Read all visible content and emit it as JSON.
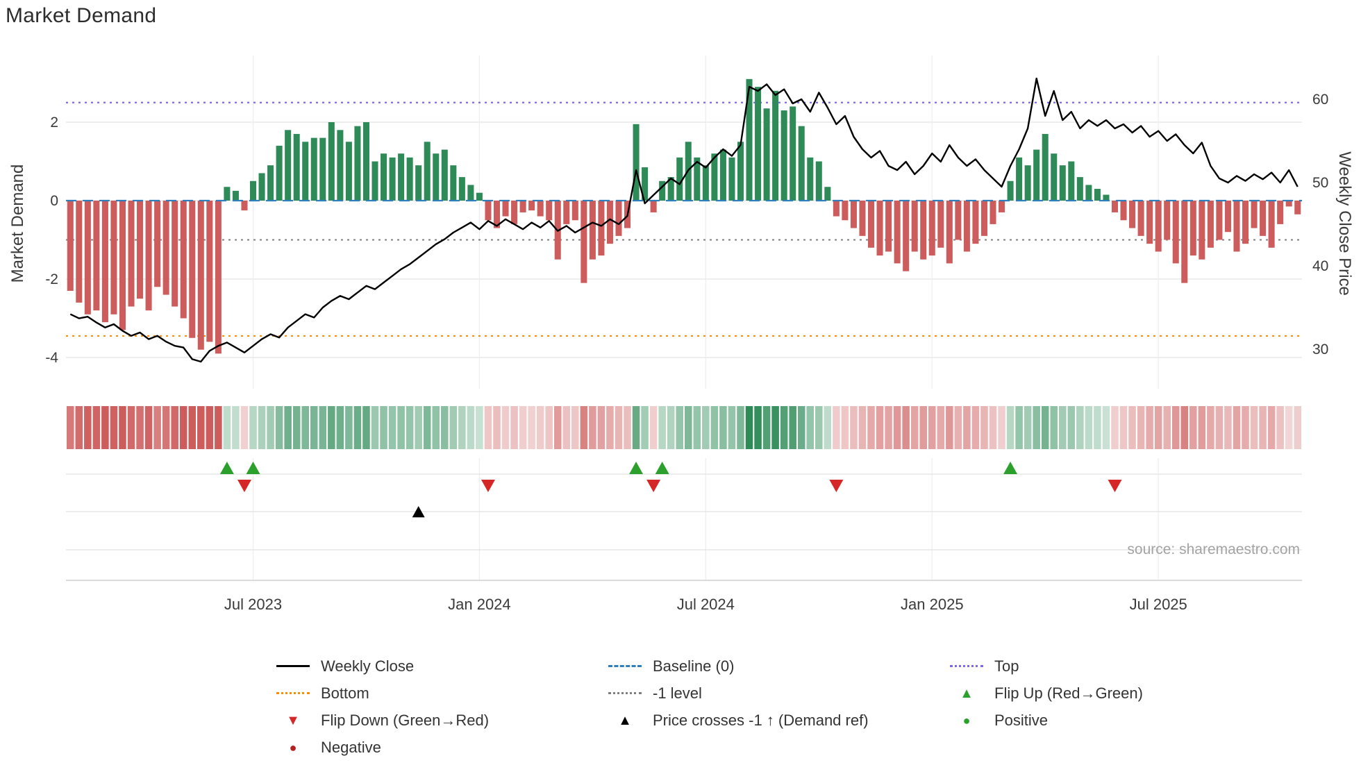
{
  "title": "Market Demand",
  "left_axis": {
    "label": "Market Demand",
    "ticks": [
      2,
      0,
      -2,
      -4
    ]
  },
  "right_axis": {
    "label": "Weekly Close Price",
    "ticks": [
      60,
      50,
      40,
      30
    ]
  },
  "x_axis": {
    "tick_labels": [
      "Jul 2023",
      "Jan 2024",
      "Jul 2024",
      "Jan 2025",
      "Jul 2025"
    ],
    "tick_indices": [
      21,
      47,
      73,
      99,
      125
    ]
  },
  "source": "source: sharemaestro.com",
  "colors": {
    "bar_positive": "#2e8b57",
    "bar_negative": "#cd5c5c",
    "price_line": "#000000",
    "baseline": "#2e7ebc",
    "top": "#7b68ee",
    "bottom": "#ff8c00",
    "minus_one": "#7f7f7f",
    "flip_up": "#2ca02c",
    "flip_down": "#d62728",
    "price_cross": "#000000",
    "grid": "#e4e4e4"
  },
  "legend": {
    "items": [
      {
        "label": "Weekly Close",
        "swatch": "line",
        "dash": "solid",
        "color": "#000000"
      },
      {
        "label": "Baseline (0)",
        "swatch": "line",
        "dash": "dashed",
        "color": "#2e7ebc"
      },
      {
        "label": "Top",
        "swatch": "line",
        "dash": "dotted",
        "color": "#7b68ee"
      },
      {
        "label": "Bottom",
        "swatch": "line",
        "dash": "dotted",
        "color": "#ff8c00"
      },
      {
        "label": "-1 level",
        "swatch": "line",
        "dash": "dotted",
        "color": "#7f7f7f"
      },
      {
        "label": "Flip Up (Red→Green)",
        "swatch": "glyph",
        "glyph": "▲",
        "color": "#2ca02c"
      },
      {
        "label": "Flip Down (Green→Red)",
        "swatch": "glyph",
        "glyph": "▼",
        "color": "#d62728"
      },
      {
        "label": "Price crosses -1 ↑ (Demand ref)",
        "swatch": "glyph",
        "glyph": "▲",
        "color": "#000000"
      },
      {
        "label": "Positive",
        "swatch": "glyph",
        "glyph": "●",
        "color": "#2ca02c"
      },
      {
        "label": "Negative",
        "swatch": "glyph",
        "glyph": "●",
        "color": "#b22222"
      }
    ]
  },
  "chart_data": {
    "type": "combo",
    "x_unit": "week",
    "x_tick_labels": [
      "Jul 2023",
      "Jan 2024",
      "Jul 2024",
      "Jan 2025",
      "Jul 2025"
    ],
    "x_tick_indices": [
      21,
      47,
      73,
      99,
      125
    ],
    "left_ylim": [
      -4.6,
      3.7
    ],
    "right_ylim": [
      28,
      63
    ],
    "reference_lines": {
      "baseline": 0,
      "top": 2.5,
      "minus_one": -1,
      "bottom": -3.45
    },
    "heatmap_from": "Market Demand",
    "series": [
      {
        "name": "Market Demand",
        "type": "bar",
        "axis": "left",
        "values": [
          -2.3,
          -2.6,
          -2.9,
          -2.8,
          -3.1,
          -2.9,
          -3.3,
          -2.7,
          -2.5,
          -2.8,
          -2.2,
          -2.4,
          -2.7,
          -3.0,
          -3.5,
          -3.8,
          -3.6,
          -3.9,
          0.35,
          0.25,
          -0.25,
          0.5,
          0.7,
          0.9,
          1.4,
          1.8,
          1.7,
          1.5,
          1.6,
          1.6,
          2.0,
          1.8,
          1.5,
          1.9,
          2.0,
          1.0,
          1.2,
          1.1,
          1.2,
          1.1,
          0.9,
          1.5,
          1.2,
          1.3,
          0.9,
          0.6,
          0.4,
          0.2,
          -0.5,
          -0.7,
          -0.4,
          -0.6,
          -0.3,
          -0.25,
          -0.4,
          -0.5,
          -1.5,
          -0.6,
          -0.5,
          -2.1,
          -1.5,
          -1.4,
          -1.1,
          -0.9,
          -0.7,
          1.95,
          0.85,
          -0.3,
          0.5,
          0.6,
          1.1,
          1.5,
          1.1,
          0.9,
          1.2,
          1.3,
          1.1,
          1.5,
          3.1,
          2.9,
          2.35,
          2.8,
          2.3,
          2.4,
          1.9,
          1.1,
          1.0,
          0.35,
          -0.4,
          -0.5,
          -0.7,
          -0.9,
          -1.2,
          -1.4,
          -1.3,
          -1.6,
          -1.8,
          -1.3,
          -1.5,
          -1.4,
          -1.2,
          -1.6,
          -1.0,
          -1.3,
          -1.1,
          -0.9,
          -0.6,
          -0.3,
          0.5,
          1.1,
          0.9,
          1.3,
          1.7,
          1.2,
          0.9,
          1.0,
          0.6,
          0.4,
          0.3,
          0.15,
          -0.3,
          -0.5,
          -0.7,
          -0.9,
          -1.1,
          -1.3,
          -1.0,
          -1.6,
          -2.1,
          -1.4,
          -1.5,
          -1.2,
          -1.0,
          -0.8,
          -1.3,
          -1.1,
          -0.7,
          -0.9,
          -1.2,
          -0.6,
          -0.15,
          -0.35
        ]
      },
      {
        "name": "Weekly Close",
        "type": "line",
        "axis": "right",
        "values": [
          34.2,
          33.7,
          33.9,
          33.2,
          32.6,
          33.0,
          32.2,
          31.6,
          32.0,
          31.2,
          31.6,
          30.9,
          30.4,
          30.2,
          28.8,
          28.5,
          29.8,
          30.4,
          30.8,
          30.2,
          29.6,
          30.4,
          31.2,
          31.8,
          31.4,
          32.6,
          33.4,
          34.2,
          33.8,
          35.0,
          35.8,
          36.4,
          36.0,
          36.8,
          37.6,
          37.2,
          38.0,
          38.8,
          39.6,
          40.2,
          41.0,
          41.8,
          42.6,
          43.2,
          44.0,
          44.6,
          45.2,
          44.4,
          45.4,
          44.8,
          45.6,
          45.0,
          44.4,
          45.2,
          44.6,
          45.4,
          44.2,
          44.8,
          44.0,
          44.6,
          45.2,
          44.8,
          45.6,
          45.0,
          46.0,
          51.5,
          47.5,
          48.5,
          49.5,
          50.5,
          49.8,
          51.5,
          52.5,
          51.8,
          53.0,
          54.0,
          53.2,
          54.5,
          61.5,
          61.0,
          61.8,
          60.5,
          61.2,
          59.5,
          60.0,
          58.5,
          60.8,
          59.0,
          57.0,
          58.0,
          55.5,
          54.0,
          53.0,
          53.8,
          52.0,
          51.5,
          52.5,
          51.0,
          52.0,
          53.5,
          52.5,
          54.5,
          53.0,
          52.0,
          52.8,
          51.5,
          50.5,
          49.5,
          52.0,
          54.0,
          56.5,
          62.5,
          58.0,
          61.0,
          57.5,
          58.5,
          56.5,
          57.5,
          56.8,
          57.5,
          56.5,
          57.0,
          56.0,
          56.8,
          55.5,
          56.2,
          55.0,
          55.8,
          54.5,
          53.5,
          54.8,
          52.0,
          50.5,
          50.0,
          50.8,
          50.2,
          51.0,
          50.4,
          51.2,
          50.0,
          51.5,
          49.5
        ]
      }
    ],
    "events": {
      "flip_up_indices": [
        18,
        21,
        65,
        68,
        108
      ],
      "flip_down_indices": [
        20,
        48,
        67,
        88,
        120
      ],
      "price_cross_minus1_indices": [
        40
      ]
    }
  }
}
